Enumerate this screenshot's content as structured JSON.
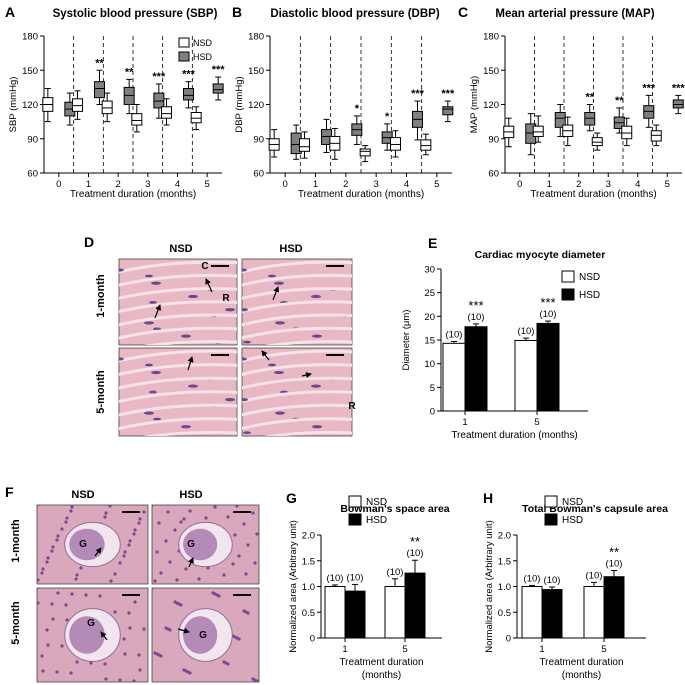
{
  "panels": {
    "A": {
      "letter": "A",
      "title": "Systolic blood pressure (SBP)",
      "ylabel": "SBP (mmHg)",
      "yticks": [
        60,
        90,
        120,
        150,
        180
      ],
      "ylim": [
        60,
        180
      ],
      "xlabel": "Treatment duration (months)",
      "xcats": [
        "0",
        "1",
        "2",
        "3",
        "4",
        "5"
      ]
    },
    "B": {
      "letter": "B",
      "title": "Diastolic blood pressure (DBP)",
      "ylabel": "DBP (mmHg)",
      "yticks": [
        60,
        90,
        120,
        150,
        180
      ],
      "ylim": [
        60,
        180
      ],
      "xlabel": "Treatment duration (months)",
      "xcats": [
        "0",
        "1",
        "2",
        "3",
        "4",
        "5"
      ]
    },
    "C": {
      "letter": "C",
      "title": "Mean arterial pressure (MAP)",
      "ylabel": "MAP (mmHg)",
      "yticks": [
        60,
        90,
        120,
        150,
        180
      ],
      "ylim": [
        60,
        180
      ],
      "xlabel": "Treatment duration (months)",
      "xcats": [
        "0",
        "1",
        "2",
        "3",
        "4",
        "5"
      ]
    },
    "D": {
      "letter": "D",
      "col1": "NSD",
      "col2": "HSD",
      "row1": "1-month",
      "row2": "5-month",
      "marks": [
        "C",
        "R",
        "R"
      ]
    },
    "E": {
      "letter": "E",
      "title": "Cardiac myocyte diameter",
      "ylabel": "Diameter (μm)",
      "xlabel": "Treatment duration (months)"
    },
    "F": {
      "letter": "F",
      "col1": "NSD",
      "col2": "HSD",
      "row1": "1-month",
      "row2": "5-month",
      "marks": [
        "G",
        "G",
        "G",
        "G"
      ]
    },
    "G": {
      "letter": "G",
      "title": "Bowman's space area",
      "ylabel": "Normalized area (Arbitrary unit)",
      "xlabel": "Treatment duration",
      "xlabel2": "(months)"
    },
    "H": {
      "letter": "H",
      "title": "Total Bowman's capsule area",
      "ylabel": "Normalized area (Arbitrary unit)",
      "xlabel": "Treatment duration",
      "xlabel2": "(months)"
    }
  },
  "legend": {
    "nsd": "NSD",
    "hsd": "HSD"
  },
  "colors": {
    "nsd": "#ffffff",
    "hsd": "#808080",
    "hsd_bar": "#000000",
    "muscle": "#e8b8c4",
    "kidney": "#d9a8bc"
  },
  "chart_data": [
    {
      "type": "box",
      "id": "A",
      "title": "Systolic blood pressure (SBP)",
      "ylabel": "SBP (mmHg)",
      "xlabel": "Treatment duration (months)",
      "ylim": [
        60,
        180
      ],
      "categories": [
        "0",
        "1",
        "2",
        "3",
        "4",
        "5"
      ],
      "series": [
        {
          "name": "NSD",
          "boxes": [
            [
              105,
              114,
              120,
              126,
              134
            ],
            [
              107,
              114,
              119,
              125,
              132
            ],
            [
              105,
              112,
              117,
              123,
              130
            ],
            [
              96,
              102,
              106,
              112,
              120
            ],
            [
              102,
              108,
              112,
              118,
              125
            ],
            [
              98,
              104,
              108,
              113,
              118
            ]
          ]
        },
        {
          "name": "HSD",
          "boxes": [
            [
              102,
              110,
              116,
              122,
              130
            ],
            [
              120,
              126,
              134,
              140,
              150
            ],
            [
              112,
              120,
              128,
              135,
              142
            ],
            [
              108,
              117,
              123,
              130,
              138
            ],
            [
              117,
              124,
              128,
              134,
              140
            ],
            [
              124,
              130,
              133,
              138,
              144
            ]
          ]
        }
      ],
      "significance": [
        "",
        "**",
        "**",
        "***",
        "***",
        "***"
      ]
    },
    {
      "type": "box",
      "id": "B",
      "title": "Diastolic blood pressure (DBP)",
      "ylabel": "DBP (mmHg)",
      "xlabel": "Treatment duration (months)",
      "ylim": [
        60,
        180
      ],
      "categories": [
        "0",
        "1",
        "2",
        "3",
        "4",
        "5"
      ],
      "series": [
        {
          "name": "NSD",
          "boxes": [
            [
              74,
              80,
              85,
              90,
              98
            ],
            [
              73,
              79,
              83,
              90,
              96
            ],
            [
              72,
              80,
              86,
              92,
              99
            ],
            [
              70,
              75,
              79,
              81,
              84
            ],
            [
              74,
              80,
              85,
              91,
              97
            ],
            [
              76,
              80,
              84,
              89,
              94
            ]
          ]
        },
        {
          "name": "HSD",
          "boxes": [
            [
              72,
              77,
              85,
              95,
              102
            ],
            [
              78,
              85,
              92,
              98,
              107
            ],
            [
              85,
              93,
              98,
              103,
              110
            ],
            [
              80,
              86,
              91,
              96,
              103
            ],
            [
              89,
              100,
              107,
              114,
              123
            ],
            [
              105,
              111,
              116,
              118,
              123
            ]
          ]
        }
      ],
      "significance": [
        "",
        "",
        "*",
        "*",
        "***",
        "***"
      ]
    },
    {
      "type": "box",
      "id": "C",
      "title": "Mean arterial pressure (MAP)",
      "ylabel": "MAP (mmHg)",
      "xlabel": "Treatment duration (months)",
      "ylim": [
        60,
        180
      ],
      "categories": [
        "0",
        "1",
        "2",
        "3",
        "4",
        "5"
      ],
      "series": [
        {
          "name": "NSD",
          "boxes": [
            [
              83,
              91,
              96,
              101,
              108
            ],
            [
              87,
              92,
              96,
              101,
              110
            ],
            [
              84,
              92,
              97,
              102,
              109
            ],
            [
              80,
              84,
              87,
              91,
              95
            ],
            [
              84,
              90,
              95,
              101,
              108
            ],
            [
              84,
              88,
              93,
              97,
              102
            ]
          ]
        },
        {
          "name": "HSD",
          "boxes": [
            [
              76,
              86,
              95,
              103,
              112
            ],
            [
              92,
              100,
              108,
              113,
              120
            ],
            [
              97,
              102,
              108,
              113,
              120
            ],
            [
              95,
              99,
              104,
              109,
              117
            ],
            [
              100,
              108,
              114,
              119,
              128
            ],
            [
              112,
              117,
              120,
              124,
              128
            ]
          ]
        }
      ],
      "significance": [
        "",
        "",
        "**",
        "**",
        "***",
        "***"
      ]
    },
    {
      "type": "bar",
      "id": "E",
      "title": "Cardiac myocyte diameter",
      "ylabel": "Diameter (μm)",
      "xlabel": "Treatment duration (months)",
      "ylim": [
        0,
        30
      ],
      "yticks": [
        0,
        5,
        10,
        15,
        20,
        25,
        30
      ],
      "categories": [
        "1",
        "5"
      ],
      "series": [
        {
          "name": "NSD",
          "values": [
            14.3,
            14.9
          ],
          "errors": [
            0.4,
            0.5
          ],
          "n": [
            "(10)",
            "(10)"
          ]
        },
        {
          "name": "HSD",
          "values": [
            17.8,
            18.5
          ],
          "errors": [
            0.6,
            0.5
          ],
          "n": [
            "(10)",
            "(10)"
          ]
        }
      ],
      "significance": [
        "***",
        "***"
      ]
    },
    {
      "type": "bar",
      "id": "G",
      "title": "Bowman's space area",
      "ylabel": "Normalized area (Arbitrary unit)",
      "xlabel": "Treatment duration (months)",
      "ylim": [
        0,
        2.0
      ],
      "yticks": [
        "0",
        "0.5",
        "1.0",
        "1.5",
        "2.0"
      ],
      "categories": [
        "1",
        "5"
      ],
      "series": [
        {
          "name": "NSD",
          "values": [
            1.0,
            1.0
          ],
          "errors": [
            0.03,
            0.15
          ],
          "n": [
            "(10)",
            "(10)"
          ]
        },
        {
          "name": "HSD",
          "values": [
            0.91,
            1.26
          ],
          "errors": [
            0.13,
            0.25
          ],
          "n": [
            "(10)",
            "(10)"
          ]
        }
      ],
      "significance": [
        "",
        "**"
      ]
    },
    {
      "type": "bar",
      "id": "H",
      "title": "Total Bowman's capsule area",
      "ylabel": "Normalized area (Arbitrary unit)",
      "xlabel": "Treatment duration (months)",
      "ylim": [
        0,
        2.0
      ],
      "yticks": [
        "0",
        "0.5",
        "1.0",
        "1.5",
        "2.0"
      ],
      "categories": [
        "1",
        "5"
      ],
      "series": [
        {
          "name": "NSD",
          "values": [
            1.0,
            1.0
          ],
          "errors": [
            0.02,
            0.08
          ],
          "n": [
            "(10)",
            "(10)"
          ]
        },
        {
          "name": "HSD",
          "values": [
            0.94,
            1.19
          ],
          "errors": [
            0.05,
            0.12
          ],
          "n": [
            "(10)",
            "(10)"
          ]
        }
      ],
      "significance": [
        "",
        "**"
      ]
    }
  ]
}
